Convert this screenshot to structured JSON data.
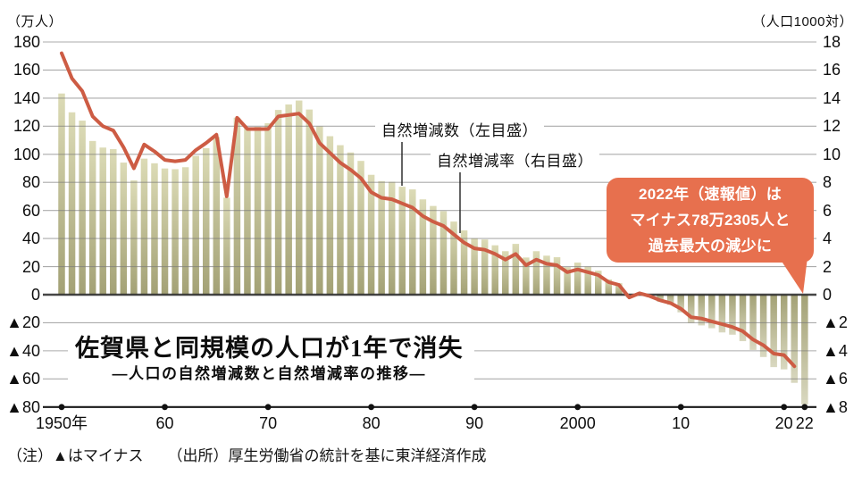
{
  "title": "佐賀県と同規模の人口が1年で消失",
  "subtitle": "―人口の自然増減数と自然増減率の推移―",
  "callout": {
    "lines": [
      "2022年（速報値）は",
      "マイナス78万2305人と",
      "過去最大の減少に"
    ]
  },
  "notes": {
    "note": "（注）▲はマイナス",
    "source": "（出所）厚生労働省の統計を基に東洋経済作成"
  },
  "colors": {
    "line": "#cd5c44",
    "callout": "#e7704e",
    "bar_light": "#dcdbb6",
    "bar_dark": "#a3a175",
    "grid": "#787878",
    "zero_line": "#2d2d2d",
    "axis": "#1a1a1a"
  },
  "chart_data": {
    "type": "combo-bar-line",
    "title": "佐賀県と同規模の人口が1年で消失",
    "subtitle": "―人口の自然増減数と自然増減率の推移―",
    "grid": true,
    "legend_position": "inline-labels",
    "years": [
      1950,
      1951,
      1952,
      1953,
      1954,
      1955,
      1956,
      1957,
      1958,
      1959,
      1960,
      1961,
      1962,
      1963,
      1964,
      1965,
      1966,
      1967,
      1968,
      1969,
      1970,
      1971,
      1972,
      1973,
      1974,
      1975,
      1976,
      1977,
      1978,
      1979,
      1980,
      1981,
      1982,
      1983,
      1984,
      1985,
      1986,
      1987,
      1988,
      1989,
      1990,
      1991,
      1992,
      1993,
      1994,
      1995,
      1996,
      1997,
      1998,
      1999,
      2000,
      2001,
      2002,
      2003,
      2004,
      2005,
      2006,
      2007,
      2008,
      2009,
      2010,
      2011,
      2012,
      2013,
      2014,
      2015,
      2016,
      2017,
      2018,
      2019,
      2020,
      2021,
      2022
    ],
    "series": [
      {
        "name": "自然増減数（左目盛）",
        "type": "bar",
        "axis": "left",
        "unit": "万人",
        "values": [
          143.3,
          129.9,
          124.0,
          109.5,
          104.8,
          103.7,
          94.1,
          81.4,
          96.9,
          93.6,
          89.9,
          89.4,
          90.8,
          98.9,
          104.4,
          112.3,
          69.1,
          126.1,
          118.5,
          119.6,
          122.1,
          131.6,
          135.5,
          138.3,
          131.9,
          119.9,
          112.9,
          106.5,
          101.3,
          95.3,
          85.4,
          80.9,
          80.4,
          76.9,
          75.0,
          67.9,
          63.2,
          59.5,
          52.1,
          45.8,
          40.1,
          39.3,
          35.2,
          31.0,
          36.2,
          26.5,
          31.0,
          27.8,
          26.7,
          19.6,
          22.9,
          20.0,
          17.1,
          10.9,
          8.2,
          -2.1,
          0.8,
          -1.9,
          -5.1,
          -7.2,
          -12.6,
          -20.2,
          -21.9,
          -23.9,
          -26.9,
          -28.5,
          -33.1,
          -39.4,
          -44.4,
          -51.6,
          -53.2,
          -62.8,
          -78.2
        ]
      },
      {
        "name": "自然増減率（右目盛）",
        "type": "line",
        "axis": "right",
        "unit": "人口1000対",
        "values": [
          17.2,
          15.4,
          14.5,
          12.7,
          12.0,
          11.7,
          10.5,
          9.0,
          10.7,
          10.2,
          9.6,
          9.5,
          9.6,
          10.3,
          10.8,
          11.4,
          7.0,
          12.6,
          11.8,
          11.8,
          11.8,
          12.7,
          12.8,
          12.9,
          12.2,
          10.8,
          10.1,
          9.4,
          8.9,
          8.3,
          7.3,
          6.9,
          6.8,
          6.5,
          6.2,
          5.6,
          5.2,
          4.9,
          4.3,
          3.7,
          3.3,
          3.2,
          2.9,
          2.5,
          2.9,
          2.1,
          2.5,
          2.2,
          2.1,
          1.6,
          1.8,
          1.6,
          1.4,
          0.9,
          0.7,
          -0.2,
          0.1,
          -0.1,
          -0.4,
          -0.6,
          -1.0,
          -1.6,
          -1.7,
          -1.9,
          -2.1,
          -2.3,
          -2.6,
          -3.2,
          -3.6,
          -4.2,
          -4.3,
          -5.1,
          null
        ]
      }
    ],
    "left_axis": {
      "label": "（万人）",
      "max": 180,
      "min": -80,
      "step": 20,
      "ticks": [
        "180",
        "160",
        "140",
        "120",
        "100",
        "80",
        "60",
        "40",
        "20",
        "0",
        "▲20",
        "▲40",
        "▲60",
        "▲80"
      ]
    },
    "right_axis": {
      "label": "（人口1000対）",
      "max": 18,
      "min": -8,
      "step": 2,
      "ticks": [
        "18",
        "16",
        "14",
        "12",
        "10",
        "8",
        "6",
        "4",
        "2",
        "0",
        "▲2",
        "▲4",
        "▲6",
        "▲8"
      ]
    },
    "x_axis": {
      "ticks": [
        {
          "label": "1950年",
          "year": 1950
        },
        {
          "label": "60",
          "year": 1960
        },
        {
          "label": "70",
          "year": 1970
        },
        {
          "label": "80",
          "year": 1980
        },
        {
          "label": "90",
          "year": 1990
        },
        {
          "label": "2000",
          "year": 2000
        },
        {
          "label": "10",
          "year": 2010
        },
        {
          "label": "20",
          "year": 2020
        },
        {
          "label": "22",
          "year": 2022
        }
      ]
    }
  }
}
